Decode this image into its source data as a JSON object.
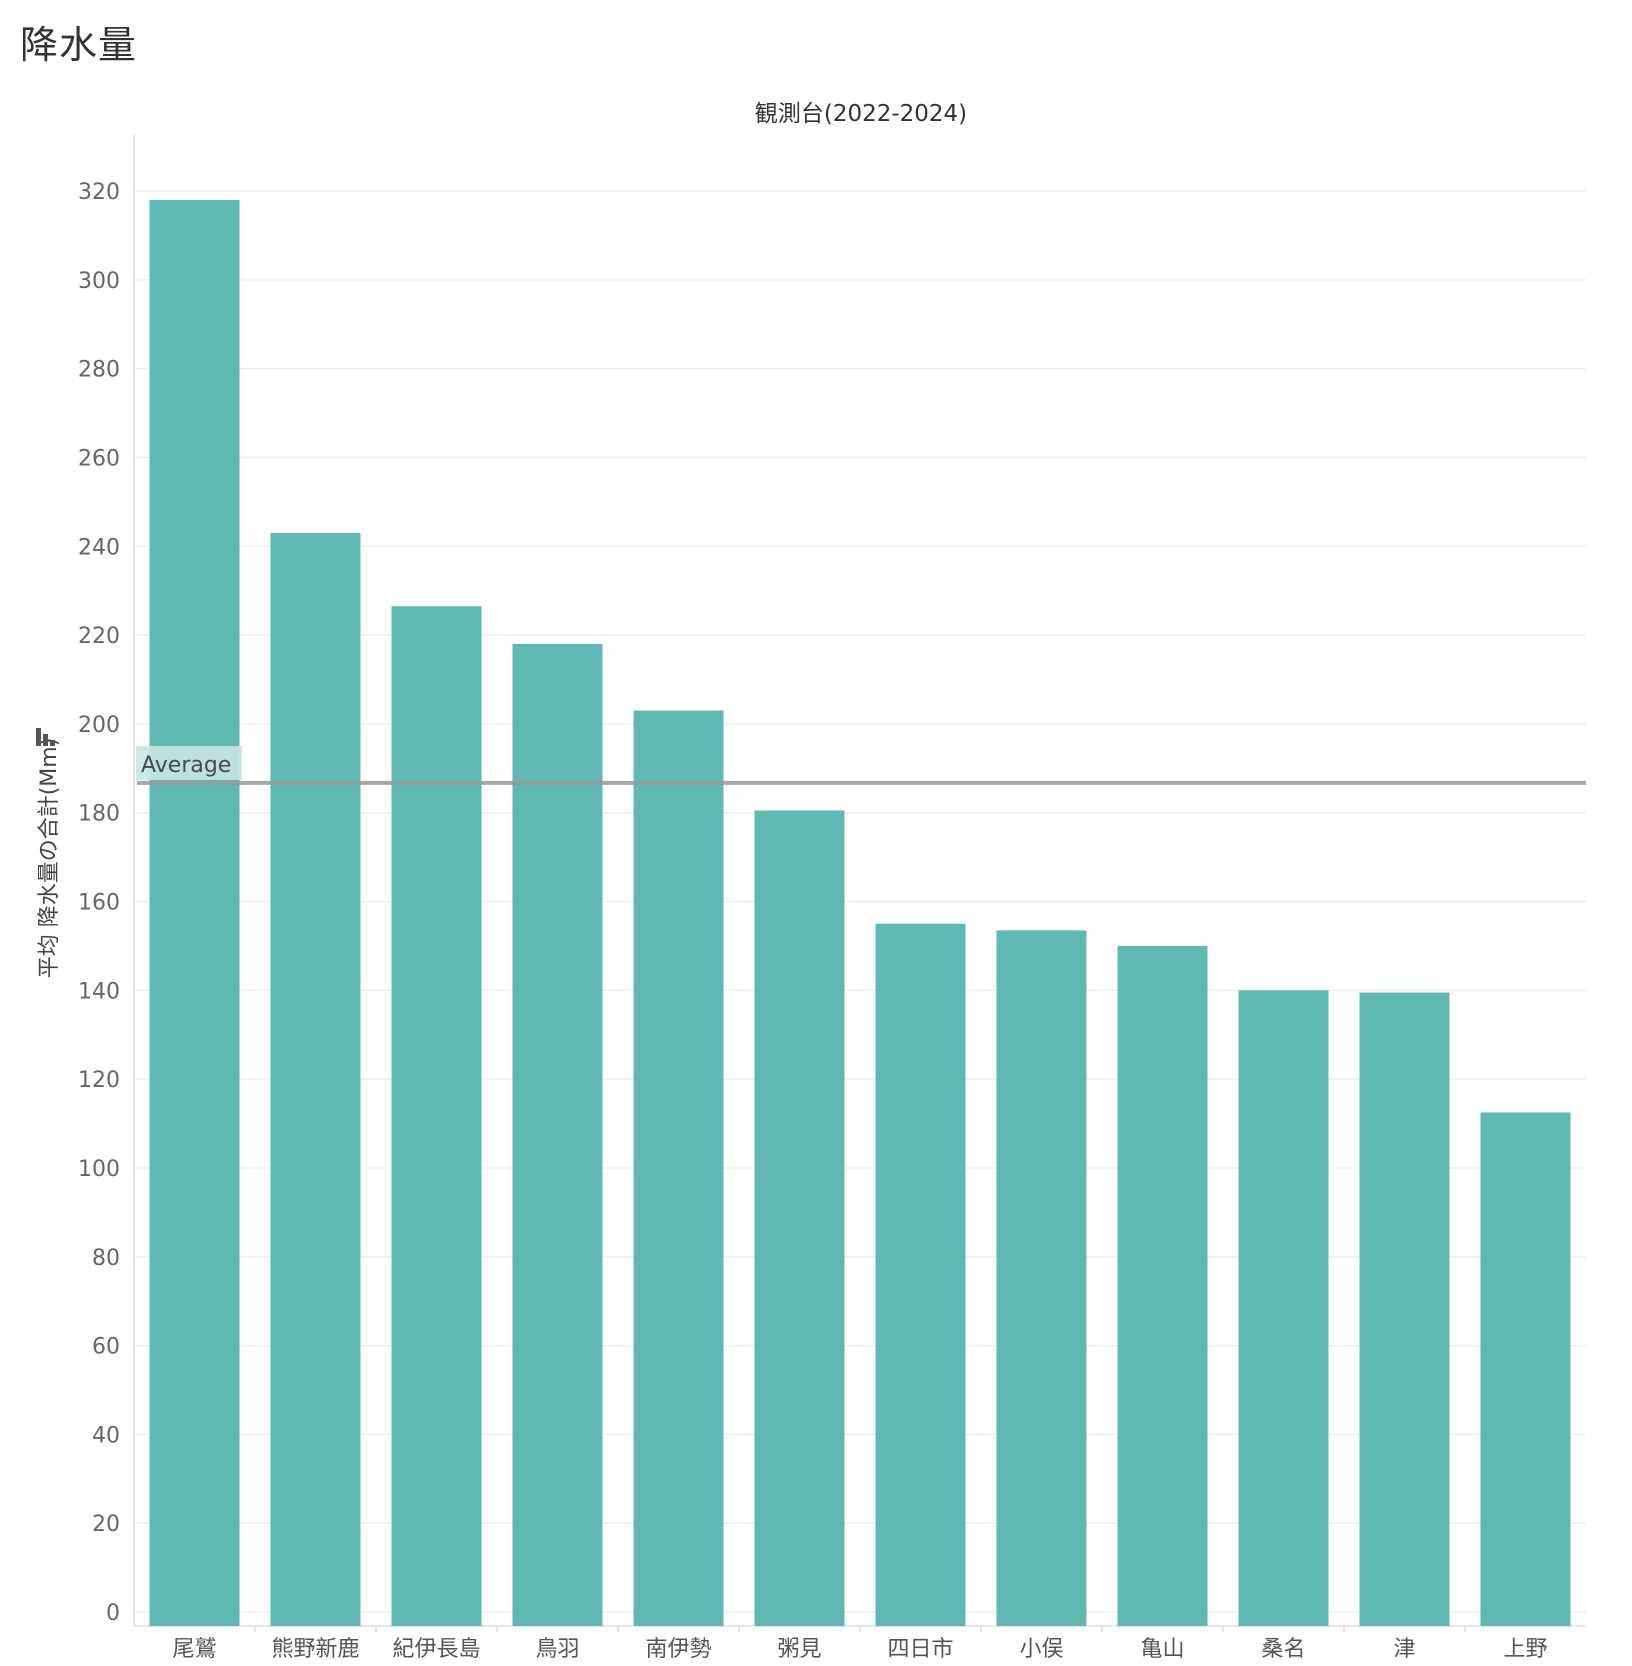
{
  "page": {
    "title": "降水量"
  },
  "colors": {
    "bar": "#5fb8b1",
    "reference_line": "#999999",
    "gridline": "#eeeeee",
    "axis": "#dddddd",
    "label_bg": "#c6e6e3"
  },
  "chart_data": {
    "type": "bar",
    "title": "観測台(2022-2024)",
    "xlabel": "",
    "ylabel": "平均 降水量の合計(Mm)",
    "ylabel_icon": "sort-descending-icon",
    "categories": [
      "尾鷲",
      "熊野新鹿",
      "紀伊長島",
      "鳥羽",
      "南伊勢",
      "粥見",
      "四日市",
      "小俣",
      "亀山",
      "桑名",
      "津",
      "上野"
    ],
    "values": [
      318,
      243,
      226.5,
      218,
      203,
      180.5,
      155,
      153.5,
      150,
      140,
      139.5,
      112.5
    ],
    "ylim": [
      0,
      320
    ],
    "yticks": [
      0,
      20,
      40,
      60,
      80,
      100,
      120,
      140,
      160,
      180,
      200,
      220,
      240,
      260,
      280,
      300,
      320
    ],
    "grid": true,
    "reference_line": {
      "label": "Average",
      "value": 186.7
    }
  }
}
